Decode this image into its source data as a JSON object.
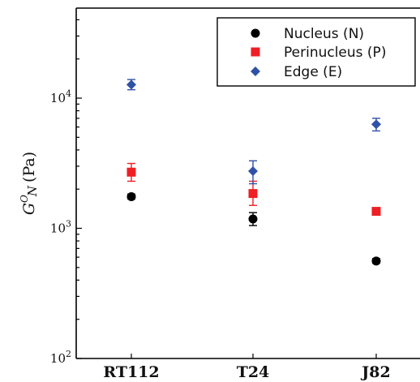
{
  "chart_data": {
    "type": "scatter",
    "categories": [
      "RT112",
      "T24",
      "J82"
    ],
    "ylabel": {
      "base": "G",
      "sup": "O",
      "sub": "N",
      "unit": "(Pa)"
    },
    "yscale": "log",
    "ylim": [
      100,
      50000
    ],
    "yticks": [
      {
        "value": 100,
        "base": "10",
        "exp": "2"
      },
      {
        "value": 1000,
        "base": "10",
        "exp": "3"
      },
      {
        "value": 10000,
        "base": "10",
        "exp": "4"
      }
    ],
    "grid": false,
    "legend_position": "top-right",
    "series": [
      {
        "name": "Nucleus (N)",
        "marker": "circle",
        "color": "#000000",
        "values": [
          1750,
          1180,
          560
        ],
        "errors": [
          [
            1680,
            1830
          ],
          [
            1050,
            1320
          ],
          [
            540,
            585
          ]
        ]
      },
      {
        "name": "Perinucleus (P)",
        "marker": "square",
        "color": "#ee1f25",
        "values": [
          2700,
          1850,
          1350
        ],
        "errors": [
          [
            2300,
            3150
          ],
          [
            1500,
            2300
          ],
          [
            1350,
            1350
          ]
        ]
      },
      {
        "name": "Edge (E)",
        "marker": "diamond",
        "color": "#3052a6",
        "values": [
          12700,
          2750,
          6300
        ],
        "errors": [
          [
            11600,
            13900
          ],
          [
            2200,
            3300
          ],
          [
            5600,
            7000
          ]
        ]
      }
    ]
  }
}
